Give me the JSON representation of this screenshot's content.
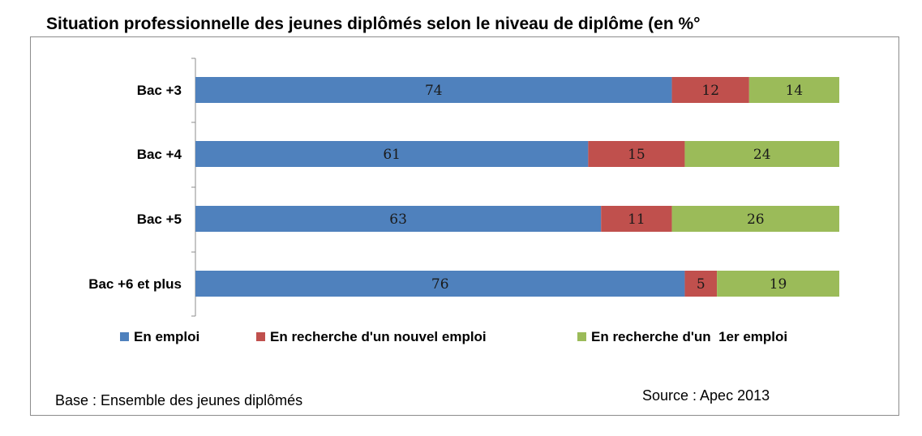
{
  "chart_data": {
    "type": "bar",
    "orientation": "horizontal",
    "stacked": true,
    "title": "Situation professionnelle des jeunes diplômés selon le niveau de diplôme (en %°",
    "categories": [
      "Bac +3",
      "Bac +4",
      "Bac +5",
      "Bac +6 et plus"
    ],
    "series": [
      {
        "name": "En emploi",
        "values": [
          74,
          61,
          63,
          76
        ],
        "color": "#4f81bd"
      },
      {
        "name": "En recherche d'un nouvel emploi",
        "values": [
          12,
          15,
          11,
          5
        ],
        "color": "#c0504d"
      },
      {
        "name": "En recherche d'un  1er emploi",
        "values": [
          14,
          24,
          26,
          19
        ],
        "color": "#9bbb59"
      }
    ],
    "xlim": [
      0,
      100
    ],
    "grid": false,
    "legend": "bottom",
    "data_labels": true
  },
  "notes": {
    "base": "Base : Ensemble des jeunes diplômés",
    "source": "Source : Apec 2013"
  }
}
